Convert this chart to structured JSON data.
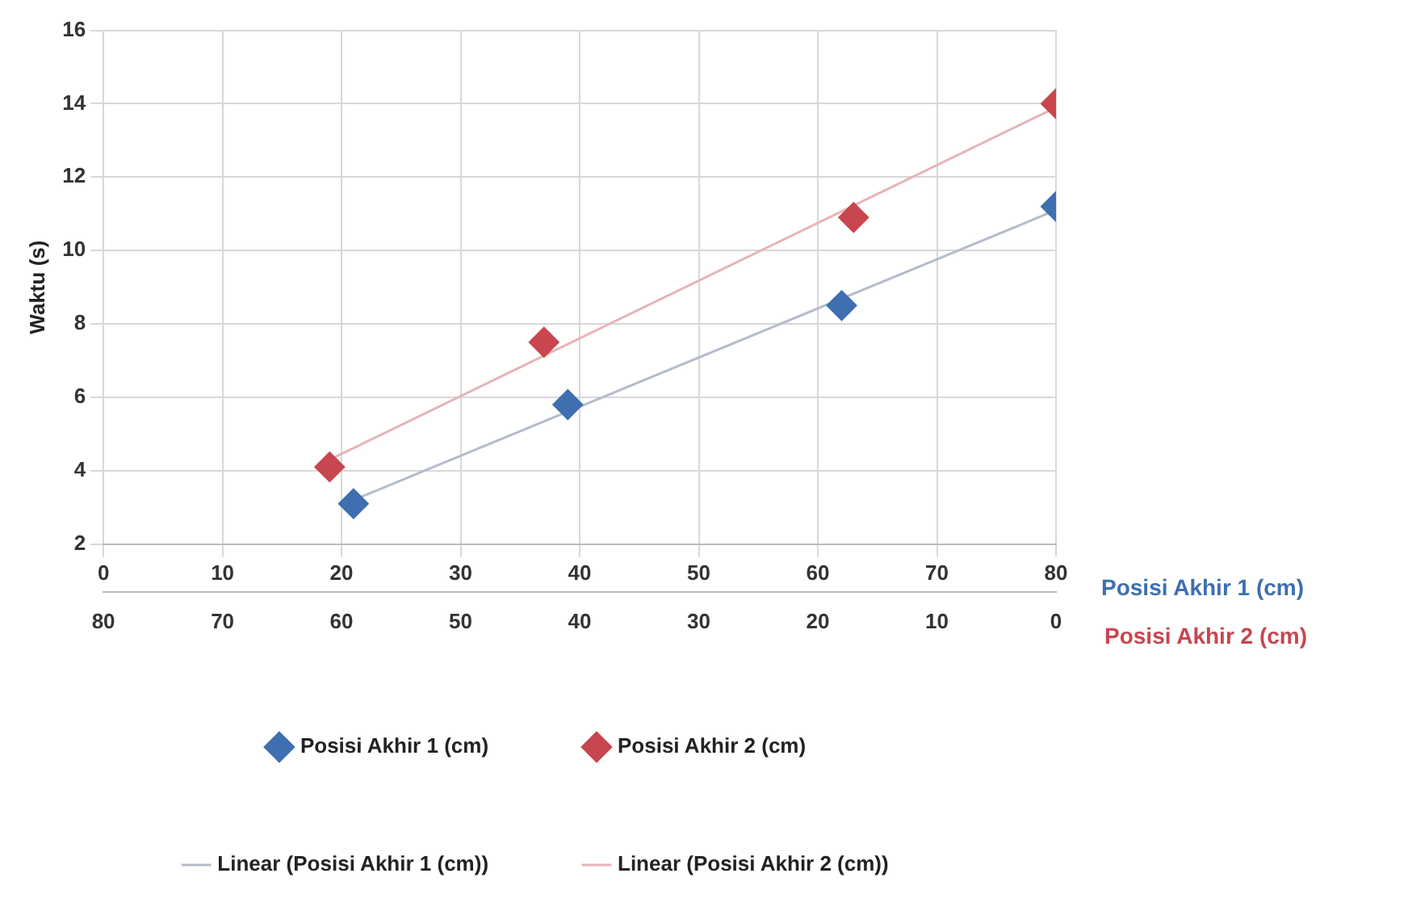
{
  "chart_data": {
    "type": "scatter",
    "xlabel": "Posisi Akhir 1 (cm)",
    "x2label": "Posisi Akhir 2 (cm)",
    "ylabel": "Waktu (s)",
    "xlim": [
      0,
      80
    ],
    "xticks": [
      0,
      10,
      20,
      30,
      40,
      50,
      60,
      70,
      80
    ],
    "x2lim": [
      80,
      0
    ],
    "x2ticks": [
      80,
      70,
      60,
      50,
      40,
      30,
      20,
      10,
      0
    ],
    "ylim": [
      2,
      16
    ],
    "yticks": [
      2,
      4,
      6,
      8,
      10,
      12,
      14,
      16
    ],
    "grid": true,
    "legend": "bottom",
    "series": [
      {
        "name": "Posisi Akhir 1 (cm)",
        "marker": "diamond",
        "color": "#3f6fb0",
        "x": [
          21,
          39,
          62,
          80
        ],
        "values": [
          3.1,
          5.8,
          8.5,
          11.2
        ]
      },
      {
        "name": "Posisi Akhir 2 (cm)",
        "marker": "diamond",
        "axis": "x2",
        "color": "#c8464e",
        "x": [
          61,
          43,
          17,
          0
        ],
        "values": [
          4.1,
          7.5,
          10.9,
          14.0
        ]
      },
      {
        "name": "Linear (Posisi Akhir 1 (cm))",
        "type": "line",
        "marker": "none",
        "line_style": "solid",
        "color": "#b4bccb",
        "x": [
          21,
          80
        ],
        "values": [
          3.2,
          11.1
        ]
      },
      {
        "name": "Linear (Posisi Akhir 2 (cm))",
        "type": "line",
        "marker": "none",
        "line_style": "solid",
        "axis": "x2",
        "color": "#e6b4b6",
        "x": [
          61,
          0
        ],
        "values": [
          4.3,
          13.9
        ]
      }
    ]
  }
}
